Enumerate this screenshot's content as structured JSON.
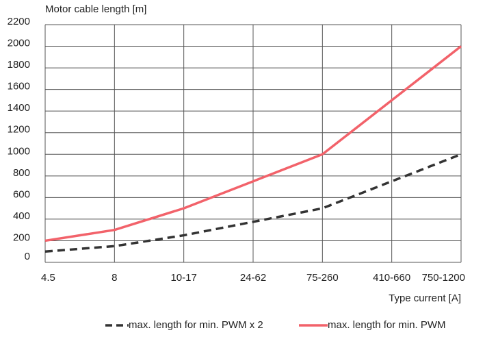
{
  "chart_data": {
    "type": "line",
    "ylabel": "Motor cable length [m]",
    "xlabel": "Type current [A]",
    "categories": [
      "4.5",
      "8",
      "10-17",
      "24-62",
      "75-260",
      "410-660",
      "750-1200"
    ],
    "ylim": [
      0,
      2200
    ],
    "yticks": [
      0,
      200,
      400,
      600,
      800,
      1000,
      1200,
      1400,
      1600,
      1800,
      2000,
      2200
    ],
    "grid": true,
    "legend_position": "bottom",
    "series": [
      {
        "name": "max. length for min. PWM x 2",
        "values": [
          100,
          150,
          250,
          375,
          500,
          750,
          1000
        ],
        "color": "#333333",
        "style": "dashed"
      },
      {
        "name": "max. length for min. PWM",
        "values": [
          200,
          300,
          500,
          750,
          1000,
          1500,
          2000
        ],
        "color": "#f2626a",
        "style": "solid"
      }
    ]
  }
}
